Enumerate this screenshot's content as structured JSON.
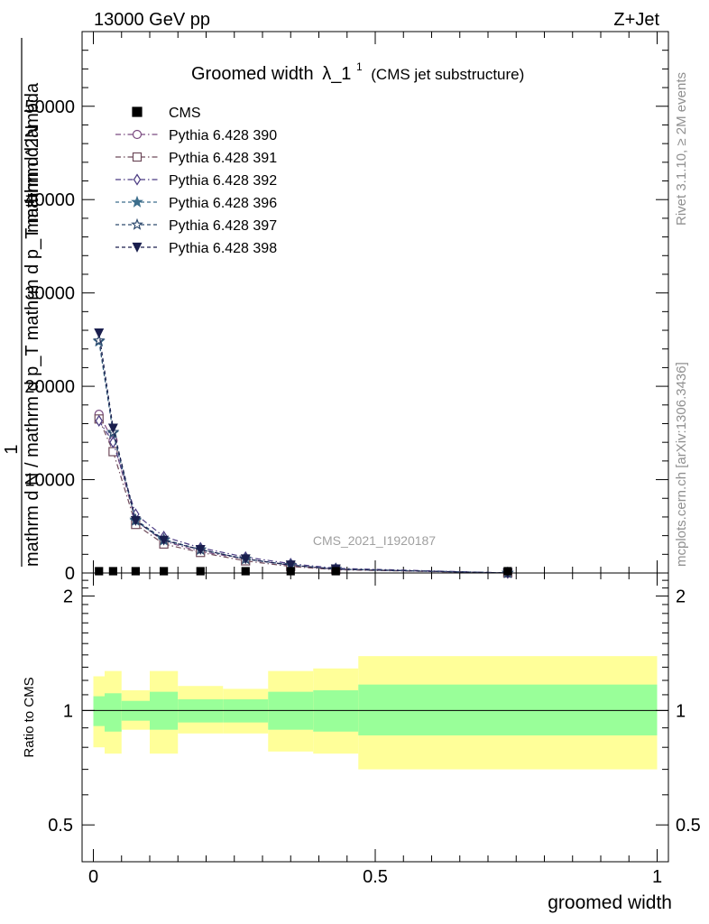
{
  "header": {
    "left": "13000 GeV pp",
    "right": "Z+Jet"
  },
  "side_labels": {
    "rivet": "Rivet 3.1.10, ≥ 2M events",
    "mcplots": "mcplots.cern.ch [arXiv:1306.3436]"
  },
  "colors": {
    "series_390": "#7a4a80",
    "series_391": "#6e4a5a",
    "series_392": "#4a3a82",
    "series_396": "#3c6e8c",
    "series_397": "#2e4a6e",
    "series_398": "#1a1f4e",
    "band_inner": "#99ff99",
    "band_outer": "#ffff99"
  },
  "chart_data": [
    {
      "type": "line",
      "title": "Groomed width",
      "title_symbol": "λ_1",
      "title_sup": "1",
      "title_note": "(CMS jet substructure)",
      "watermark": "CMS_2021_I1920187",
      "ylabel_top": "1",
      "ylabel_fraction": [
        "mathrm d N / mathrm d p_T mathrm d p_T mathrm d lambda",
        "mathrm d^2N"
      ],
      "xlim": [
        -0.02,
        1.02
      ],
      "ylim": [
        0,
        58000
      ],
      "yticks": [
        0,
        10000,
        20000,
        30000,
        40000,
        50000
      ],
      "ytick_labels": [
        "0",
        "10000",
        "20000",
        "30000",
        "40000",
        "50000"
      ],
      "legend_position": "top-left",
      "data_name": "CMS",
      "data_points": {
        "x": [
          0.01,
          0.035,
          0.075,
          0.125,
          0.19,
          0.27,
          0.35,
          0.43,
          0.735
        ],
        "y": [
          0,
          0,
          0,
          0,
          0,
          0,
          0,
          0,
          0
        ]
      },
      "series": [
        {
          "name": "Pythia 6.428 390",
          "marker": "circle-open",
          "dash": "dashdot",
          "x": [
            0.01,
            0.035,
            0.075,
            0.125,
            0.19,
            0.27,
            0.35,
            0.43,
            0.735
          ],
          "y": [
            17000,
            14200,
            5600,
            3400,
            2300,
            1500,
            800,
            400,
            0
          ]
        },
        {
          "name": "Pythia 6.428 391",
          "marker": "square-open",
          "dash": "dashdot",
          "x": [
            0.01,
            0.035,
            0.075,
            0.125,
            0.19,
            0.27,
            0.35,
            0.43,
            0.735
          ],
          "y": [
            16500,
            13000,
            5200,
            3100,
            2200,
            1300,
            700,
            350,
            0
          ]
        },
        {
          "name": "Pythia 6.428 392",
          "marker": "diamond-open",
          "dash": "dashdot",
          "x": [
            0.01,
            0.035,
            0.075,
            0.125,
            0.19,
            0.27,
            0.35,
            0.43,
            0.735
          ],
          "y": [
            16300,
            14000,
            6300,
            3900,
            2700,
            1700,
            1000,
            500,
            0
          ]
        },
        {
          "name": "Pythia 6.428 396",
          "marker": "star-filled",
          "dash": "dashed",
          "x": [
            0.01,
            0.035,
            0.075,
            0.125,
            0.19,
            0.27,
            0.35,
            0.43,
            0.735
          ],
          "y": [
            24800,
            15000,
            5600,
            3500,
            2500,
            1500,
            850,
            420,
            0
          ]
        },
        {
          "name": "Pythia 6.428 397",
          "marker": "star-open",
          "dash": "dashed",
          "x": [
            0.01,
            0.035,
            0.075,
            0.125,
            0.19,
            0.27,
            0.35,
            0.43,
            0.735
          ],
          "y": [
            24900,
            15100,
            5700,
            3600,
            2500,
            1500,
            850,
            420,
            0
          ]
        },
        {
          "name": "Pythia 6.428 398",
          "marker": "triangle-down-filled",
          "dash": "dashed",
          "x": [
            0.01,
            0.035,
            0.075,
            0.125,
            0.19,
            0.27,
            0.35,
            0.43,
            0.735
          ],
          "y": [
            25700,
            15500,
            5600,
            3500,
            2500,
            1500,
            850,
            420,
            0
          ]
        }
      ]
    },
    {
      "type": "area",
      "ylabel": "Ratio to CMS",
      "xlabel": "groomed width",
      "xlim": [
        -0.02,
        1.02
      ],
      "ylim": [
        0.4,
        2.3
      ],
      "log_scale_y": true,
      "xticks": [
        0,
        0.5,
        1
      ],
      "xtick_labels": [
        "0",
        "0.5",
        "1"
      ],
      "yticks": [
        0.5,
        1,
        2
      ],
      "ytick_labels": [
        "0.5",
        "1",
        "2"
      ],
      "reference_line": 1,
      "bins": [
        {
          "x0": 0.0,
          "x1": 0.02,
          "inner": [
            0.91,
            1.09
          ],
          "outer": [
            0.8,
            1.23
          ]
        },
        {
          "x0": 0.02,
          "x1": 0.05,
          "inner": [
            0.88,
            1.11
          ],
          "outer": [
            0.77,
            1.27
          ]
        },
        {
          "x0": 0.05,
          "x1": 0.1,
          "inner": [
            0.94,
            1.06
          ],
          "outer": [
            0.89,
            1.13
          ]
        },
        {
          "x0": 0.1,
          "x1": 0.15,
          "inner": [
            0.89,
            1.12
          ],
          "outer": [
            0.77,
            1.27
          ]
        },
        {
          "x0": 0.15,
          "x1": 0.23,
          "inner": [
            0.93,
            1.07
          ],
          "outer": [
            0.87,
            1.16
          ]
        },
        {
          "x0": 0.23,
          "x1": 0.31,
          "inner": [
            0.93,
            1.07
          ],
          "outer": [
            0.87,
            1.14
          ]
        },
        {
          "x0": 0.31,
          "x1": 0.39,
          "inner": [
            0.89,
            1.12
          ],
          "outer": [
            0.78,
            1.27
          ]
        },
        {
          "x0": 0.39,
          "x1": 0.47,
          "inner": [
            0.88,
            1.13
          ],
          "outer": [
            0.77,
            1.29
          ]
        },
        {
          "x0": 0.47,
          "x1": 1.0,
          "inner": [
            0.86,
            1.17
          ],
          "outer": [
            0.7,
            1.39
          ]
        }
      ]
    }
  ]
}
